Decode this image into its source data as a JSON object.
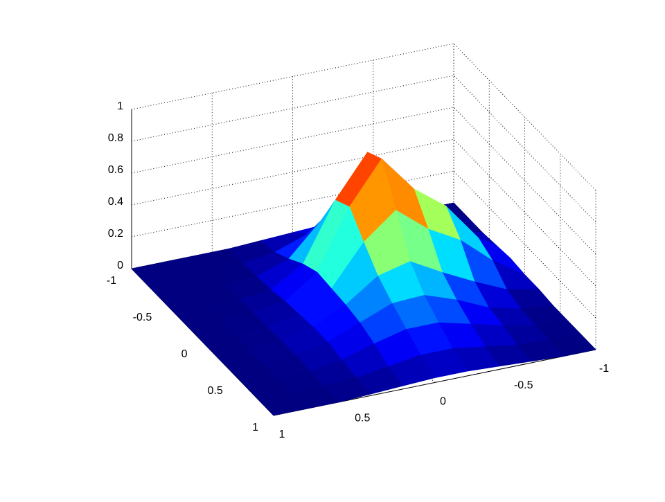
{
  "chart_data": {
    "type": "surface",
    "x": [
      -1,
      -0.8,
      -0.6,
      -0.4,
      -0.2,
      0,
      0.2,
      0.4,
      0.6,
      0.8,
      1
    ],
    "y": [
      -1,
      -0.8,
      -0.6,
      -0.4,
      -0.2,
      0,
      0.2,
      0.4,
      0.6,
      0.8,
      1
    ],
    "z": [
      [
        0,
        0,
        0.01,
        0.02,
        0.03,
        0.02,
        0.01,
        0,
        0,
        0,
        0
      ],
      [
        0,
        0.01,
        0.03,
        0.1,
        0.15,
        0.1,
        0.03,
        0,
        0,
        0,
        0
      ],
      [
        0,
        0.04,
        0.13,
        0.29,
        0.44,
        0.28,
        0.08,
        0.01,
        0,
        0,
        0
      ],
      [
        0.01,
        0.13,
        0.32,
        0.53,
        0.76,
        0.5,
        0.14,
        0.02,
        0,
        0,
        0
      ],
      [
        0.02,
        0.19,
        0.43,
        0.58,
        0.81,
        0.55,
        0.18,
        0.04,
        0.01,
        0,
        0
      ],
      [
        0.01,
        0.14,
        0.31,
        0.42,
        0.58,
        0.42,
        0.17,
        0.05,
        0.01,
        0,
        0
      ],
      [
        0.01,
        0.05,
        0.14,
        0.24,
        0.35,
        0.3,
        0.16,
        0.06,
        0.02,
        0,
        0
      ],
      [
        0,
        0.02,
        0.07,
        0.16,
        0.23,
        0.22,
        0.14,
        0.06,
        0.02,
        0,
        0
      ],
      [
        0,
        0.01,
        0.05,
        0.1,
        0.15,
        0.15,
        0.1,
        0.04,
        0.01,
        0,
        0
      ],
      [
        0,
        0.01,
        0.02,
        0.05,
        0.08,
        0.08,
        0.05,
        0.02,
        0.01,
        0,
        0
      ],
      [
        0,
        0,
        0.01,
        0.02,
        0.03,
        0.03,
        0.02,
        0.01,
        0,
        0,
        0
      ]
    ],
    "xlim": [
      -1,
      1
    ],
    "ylim": [
      -1,
      1
    ],
    "zlim": [
      0,
      1
    ],
    "xticks": [
      -1,
      -0.5,
      0,
      0.5,
      1
    ],
    "yticks": [
      -1,
      -0.5,
      0,
      0.5,
      1
    ],
    "zticks": [
      0,
      0.2,
      0.4,
      0.6,
      0.8,
      1
    ],
    "grid": true,
    "colormap": "jet"
  }
}
